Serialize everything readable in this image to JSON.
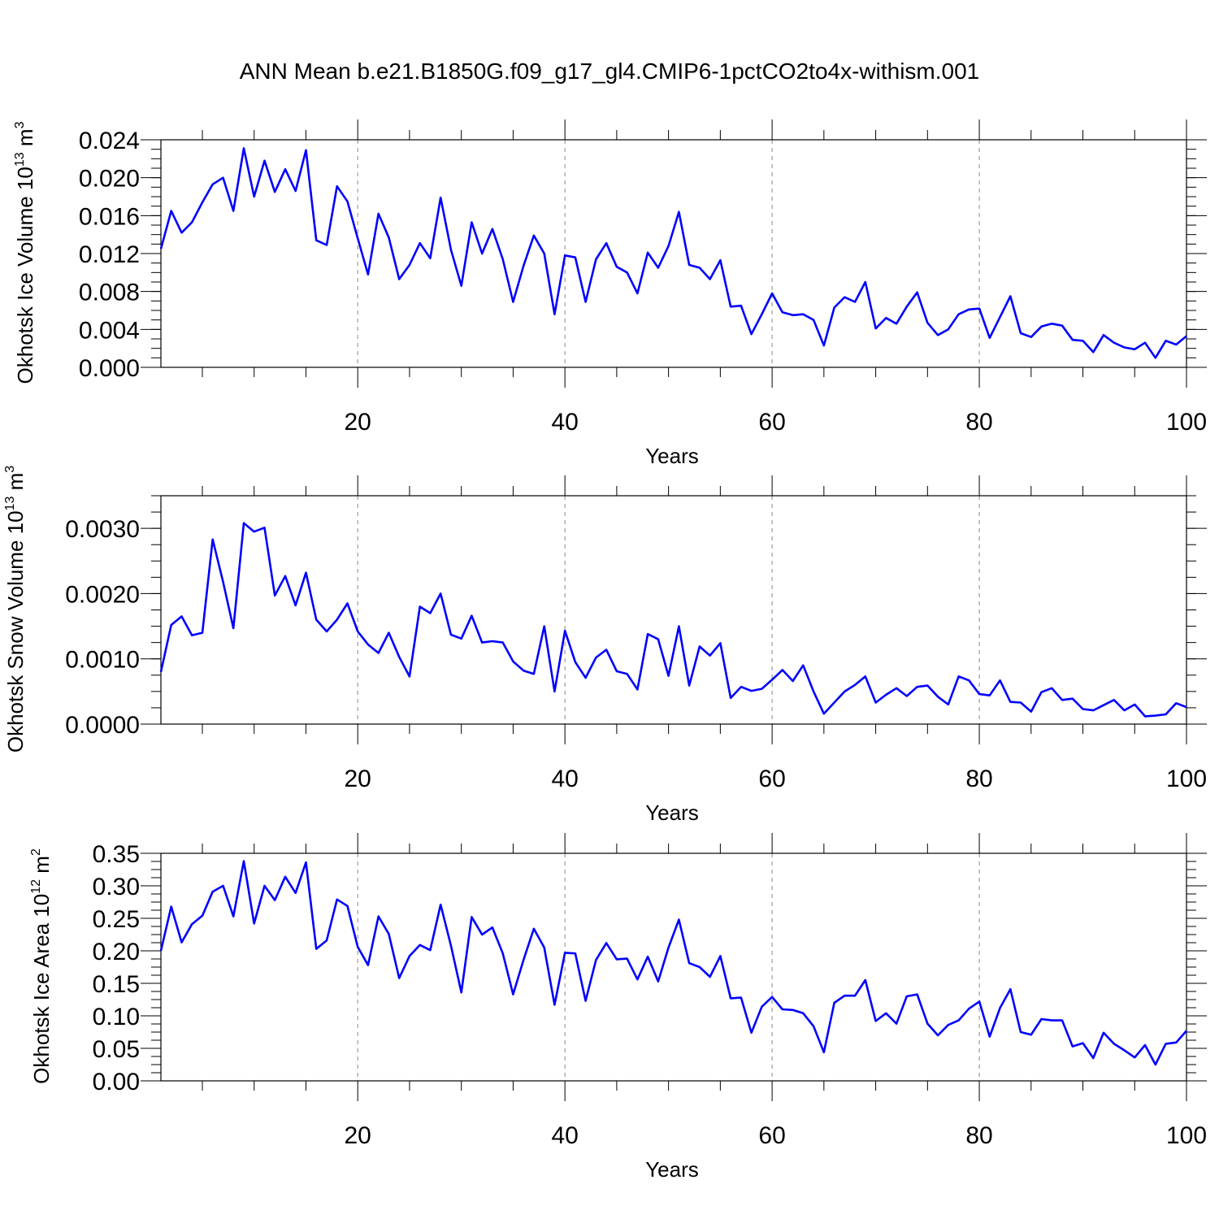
{
  "title": "ANN Mean b.e21.B1850G.f09_g17_gl4.CMIP6-1pctCO2to4x-withism.001",
  "colors": {
    "series": "#0000ff",
    "axes": "#000000",
    "grid": "#888888"
  },
  "chart_data": [
    {
      "type": "line",
      "ylabel": {
        "main": "Okhotsk Ice Volume 10",
        "exp": "13",
        "unit": " m",
        "unit_exp": "3"
      },
      "xlabel": "Years",
      "xlim": [
        1,
        100
      ],
      "ylim": [
        0,
        0.024
      ],
      "xticks": [
        20,
        40,
        60,
        80,
        100
      ],
      "xtick_labels": [
        "20",
        "40",
        "60",
        "80",
        "100"
      ],
      "yticks": [
        0,
        0.004,
        0.008,
        0.012,
        0.016,
        0.02,
        0.024
      ],
      "ytick_labels": [
        "0.000",
        "0.004",
        "0.008",
        "0.012",
        "0.016",
        "0.020",
        "0.024"
      ],
      "grid": "vertical dashed at major x ticks",
      "x_start": 1,
      "values": [
        0.0125,
        0.0165,
        0.0142,
        0.0153,
        0.0174,
        0.0193,
        0.02,
        0.0165,
        0.0231,
        0.018,
        0.0218,
        0.0185,
        0.0209,
        0.0186,
        0.0229,
        0.0134,
        0.0129,
        0.0191,
        0.0175,
        0.0136,
        0.0098,
        0.0162,
        0.0137,
        0.0093,
        0.0108,
        0.0131,
        0.0115,
        0.0179,
        0.0124,
        0.0086,
        0.0153,
        0.012,
        0.0146,
        0.0114,
        0.0069,
        0.0107,
        0.0139,
        0.012,
        0.0056,
        0.0118,
        0.0116,
        0.0069,
        0.0114,
        0.0131,
        0.0106,
        0.01,
        0.0078,
        0.0121,
        0.0105,
        0.0128,
        0.0164,
        0.0108,
        0.0105,
        0.0093,
        0.0113,
        0.0064,
        0.0065,
        0.0035,
        0.0056,
        0.0078,
        0.0058,
        0.0055,
        0.0056,
        0.005,
        0.0023,
        0.0063,
        0.0074,
        0.0069,
        0.009,
        0.0041,
        0.0052,
        0.0046,
        0.0064,
        0.0079,
        0.0047,
        0.0034,
        0.004,
        0.0056,
        0.0061,
        0.0062,
        0.0031,
        0.0053,
        0.0075,
        0.0036,
        0.0032,
        0.0043,
        0.0046,
        0.0044,
        0.0029,
        0.0028,
        0.0016,
        0.0034,
        0.0026,
        0.0021,
        0.0019,
        0.0026,
        0.001,
        0.0028,
        0.0024,
        0.0033
      ]
    },
    {
      "type": "line",
      "ylabel": {
        "main": "Okhotsk Snow Volume 10",
        "exp": "13",
        "unit": " m",
        "unit_exp": "3"
      },
      "xlabel": "Years",
      "xlim": [
        1,
        100
      ],
      "ylim": [
        0,
        0.0035
      ],
      "xticks": [
        20,
        40,
        60,
        80,
        100
      ],
      "xtick_labels": [
        "20",
        "40",
        "60",
        "80",
        "100"
      ],
      "yticks": [
        0,
        0.001,
        0.002,
        0.003
      ],
      "ytick_labels": [
        "0.0000",
        "0.0010",
        "0.0020",
        "0.0030"
      ],
      "grid": "vertical dashed at major x ticks",
      "x_start": 1,
      "values": [
        0.0008,
        0.00152,
        0.00165,
        0.00136,
        0.0014,
        0.00283,
        0.00218,
        0.00147,
        0.00308,
        0.00295,
        0.00301,
        0.00197,
        0.00227,
        0.00182,
        0.00232,
        0.0016,
        0.00142,
        0.0016,
        0.00185,
        0.00142,
        0.00122,
        0.00109,
        0.0014,
        0.00103,
        0.00073,
        0.0018,
        0.0017,
        0.002,
        0.00137,
        0.00131,
        0.00166,
        0.00125,
        0.00127,
        0.00125,
        0.00096,
        0.00082,
        0.00077,
        0.0015,
        0.0005,
        0.00143,
        0.00095,
        0.00071,
        0.00102,
        0.00114,
        0.00081,
        0.00077,
        0.00053,
        0.00138,
        0.0013,
        0.00074,
        0.0015,
        0.00059,
        0.00119,
        0.00105,
        0.00124,
        0.0004,
        0.00057,
        0.00051,
        0.00054,
        0.00068,
        0.00083,
        0.00066,
        0.0009,
        0.0005,
        0.00016,
        0.00033,
        0.0005,
        0.0006,
        0.00073,
        0.00033,
        0.00045,
        0.00055,
        0.00043,
        0.00057,
        0.00059,
        0.00042,
        0.0003,
        0.00073,
        0.00067,
        0.00046,
        0.00044,
        0.00067,
        0.00034,
        0.00033,
        0.00019,
        0.00049,
        0.00055,
        0.00037,
        0.00039,
        0.00023,
        0.00021,
        0.00029,
        0.00037,
        0.00021,
        0.0003,
        0.00012,
        0.00013,
        0.00015,
        0.00032,
        0.00026
      ]
    },
    {
      "type": "line",
      "ylabel": {
        "main": "Okhotsk Ice Area 10",
        "exp": "12",
        "unit": " m",
        "unit_exp": "2"
      },
      "xlabel": "Years",
      "xlim": [
        1,
        100
      ],
      "ylim": [
        0,
        0.35
      ],
      "xticks": [
        20,
        40,
        60,
        80,
        100
      ],
      "xtick_labels": [
        "20",
        "40",
        "60",
        "80",
        "100"
      ],
      "yticks": [
        0,
        0.05,
        0.1,
        0.15,
        0.2,
        0.25,
        0.3,
        0.35
      ],
      "ytick_labels": [
        "0.00",
        "0.05",
        "0.10",
        "0.15",
        "0.20",
        "0.25",
        "0.30",
        "0.35"
      ],
      "grid": "vertical dashed at major x ticks",
      "x_start": 1,
      "values": [
        0.2,
        0.268,
        0.213,
        0.241,
        0.254,
        0.291,
        0.3,
        0.253,
        0.338,
        0.242,
        0.3,
        0.278,
        0.314,
        0.289,
        0.336,
        0.203,
        0.216,
        0.279,
        0.269,
        0.206,
        0.178,
        0.253,
        0.226,
        0.158,
        0.192,
        0.209,
        0.201,
        0.271,
        0.208,
        0.136,
        0.252,
        0.225,
        0.236,
        0.196,
        0.133,
        0.186,
        0.234,
        0.205,
        0.117,
        0.197,
        0.196,
        0.123,
        0.186,
        0.212,
        0.187,
        0.188,
        0.156,
        0.191,
        0.153,
        0.205,
        0.248,
        0.181,
        0.175,
        0.16,
        0.192,
        0.127,
        0.128,
        0.074,
        0.114,
        0.129,
        0.11,
        0.109,
        0.104,
        0.084,
        0.044,
        0.12,
        0.131,
        0.131,
        0.155,
        0.092,
        0.104,
        0.088,
        0.13,
        0.133,
        0.088,
        0.07,
        0.086,
        0.093,
        0.111,
        0.122,
        0.068,
        0.112,
        0.141,
        0.075,
        0.071,
        0.095,
        0.093,
        0.093,
        0.053,
        0.058,
        0.035,
        0.074,
        0.057,
        0.047,
        0.036,
        0.055,
        0.025,
        0.057,
        0.059,
        0.077
      ]
    }
  ]
}
